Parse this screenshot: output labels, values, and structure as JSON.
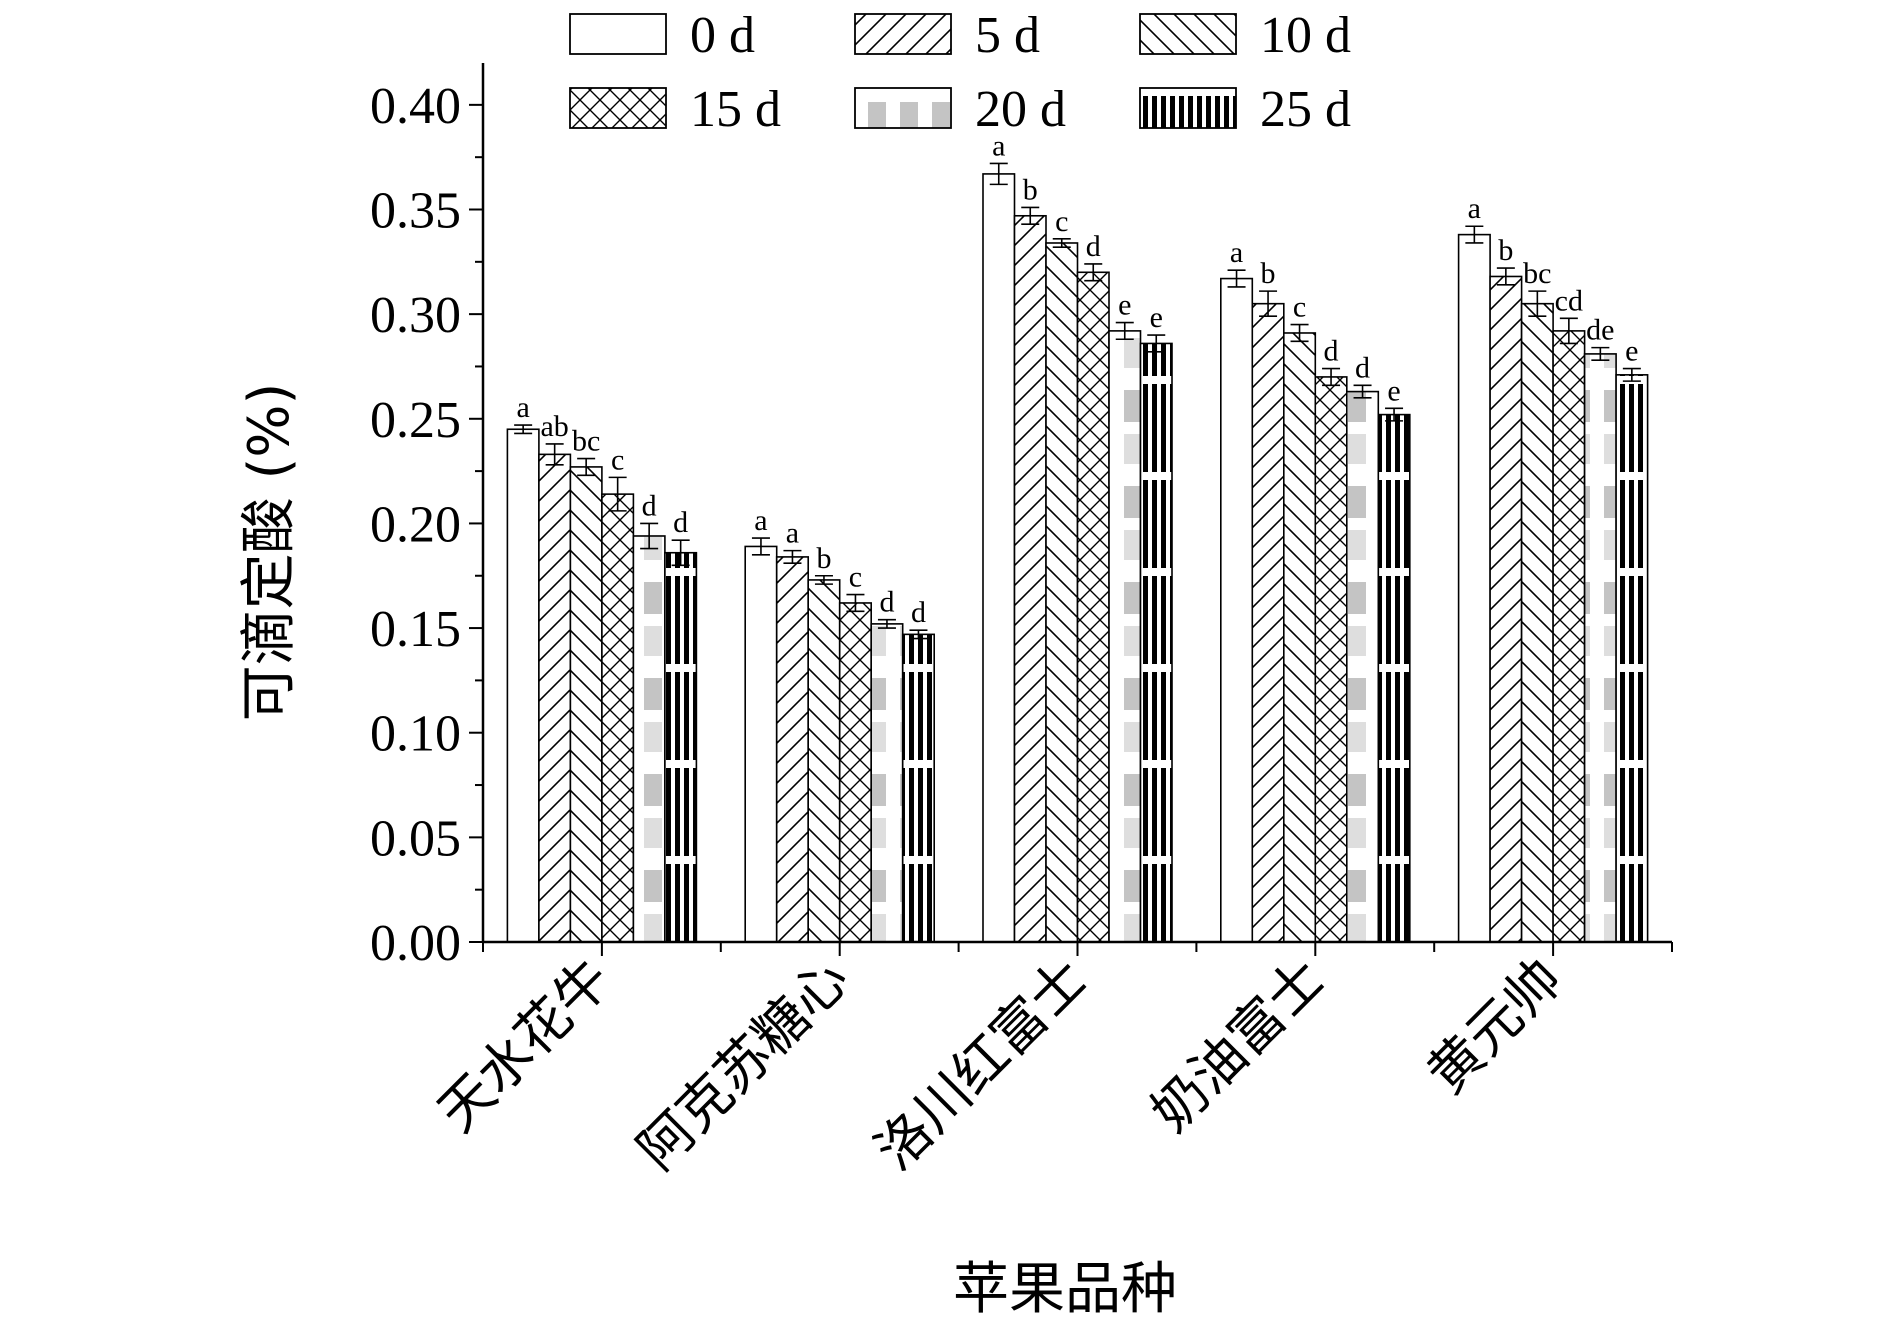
{
  "chart_data": {
    "type": "bar",
    "title": "",
    "xlabel": "苹果品种",
    "ylabel": "可滴定酸 (%)",
    "ylim": [
      0,
      0.42
    ],
    "yticks": [
      "0.00",
      "0.05",
      "0.10",
      "0.15",
      "0.20",
      "0.25",
      "0.30",
      "0.35",
      "0.40"
    ],
    "grid": false,
    "legend_position": "top",
    "categories": [
      "天水花牛",
      "阿克苏糖心",
      "洛川红富士",
      "奶油富士",
      "黄元帅"
    ],
    "series": [
      {
        "name": "0 d",
        "pattern": "none",
        "values": [
          0.245,
          0.189,
          0.367,
          0.317,
          0.338
        ],
        "errors": [
          0.002,
          0.004,
          0.005,
          0.004,
          0.004
        ],
        "labels": [
          "a",
          "a",
          "a",
          "a",
          "a"
        ]
      },
      {
        "name": "5 d",
        "pattern": "diag-right",
        "values": [
          0.233,
          0.184,
          0.347,
          0.305,
          0.318
        ],
        "errors": [
          0.005,
          0.003,
          0.004,
          0.006,
          0.004
        ],
        "labels": [
          "ab",
          "a",
          "b",
          "b",
          "b"
        ]
      },
      {
        "name": "10 d",
        "pattern": "diag-left",
        "values": [
          0.227,
          0.173,
          0.334,
          0.291,
          0.305
        ],
        "errors": [
          0.004,
          0.002,
          0.002,
          0.004,
          0.006
        ],
        "labels": [
          "bc",
          "b",
          "c",
          "c",
          "bc"
        ]
      },
      {
        "name": "15 d",
        "pattern": "cross",
        "values": [
          0.214,
          0.162,
          0.32,
          0.27,
          0.292
        ],
        "errors": [
          0.008,
          0.004,
          0.004,
          0.004,
          0.006
        ],
        "labels": [
          "c",
          "c",
          "d",
          "d",
          "cd"
        ]
      },
      {
        "name": "20 d",
        "pattern": "dots",
        "values": [
          0.194,
          0.152,
          0.292,
          0.263,
          0.281
        ],
        "errors": [
          0.006,
          0.002,
          0.004,
          0.003,
          0.003
        ],
        "labels": [
          "d",
          "d",
          "e",
          "d",
          "de"
        ]
      },
      {
        "name": "25 d",
        "pattern": "vstripes",
        "values": [
          0.186,
          0.147,
          0.286,
          0.252,
          0.271
        ],
        "errors": [
          0.006,
          0.002,
          0.004,
          0.003,
          0.003
        ],
        "labels": [
          "d",
          "d",
          "e",
          "e",
          "e"
        ]
      }
    ]
  }
}
